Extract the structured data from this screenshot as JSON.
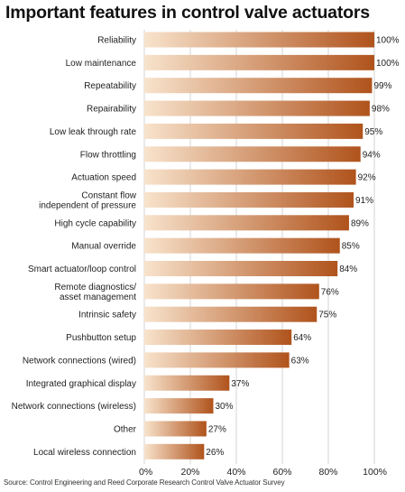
{
  "chart_data": {
    "type": "bar",
    "orientation": "horizontal",
    "title": "Important features in control valve actuators",
    "categories": [
      "Reliability",
      "Low maintenance",
      "Repeatability",
      "Repairability",
      "Low leak through rate",
      "Flow throttling",
      "Actuation speed",
      "Constant flow\nindependent of pressure",
      "High cycle capability",
      "Manual override",
      "Smart actuator/loop control",
      "Remote diagnostics/\nasset management",
      "Intrinsic safety",
      "Pushbutton setup",
      "Network connections (wired)",
      "Integrated graphical display",
      "Network connections (wireless)",
      "Other",
      "Local wireless connection"
    ],
    "values": [
      100,
      100,
      99,
      98,
      95,
      94,
      92,
      91,
      89,
      85,
      84,
      76,
      75,
      64,
      63,
      37,
      30,
      27,
      26
    ],
    "value_labels": [
      "100%",
      "100%",
      "99%",
      "98%",
      "95%",
      "94%",
      "92%",
      "91%",
      "89%",
      "85%",
      "84%",
      "76%",
      "75%",
      "64%",
      "63%",
      "37%",
      "30%",
      "27%",
      "26%"
    ],
    "xlim": [
      0,
      100
    ],
    "x_ticks": [
      0,
      20,
      40,
      60,
      80,
      100
    ],
    "x_tick_labels": [
      "0%",
      "20%",
      "40%",
      "60%",
      "80%",
      "100%"
    ],
    "grid": true,
    "source": "Source: Control Engineering and Reed Corporate Research Control Valve Actuator Survey",
    "colors": {
      "bar_start": "#f8e3cc",
      "bar_end": "#b0531c",
      "grid": "#c8c8c8"
    }
  }
}
